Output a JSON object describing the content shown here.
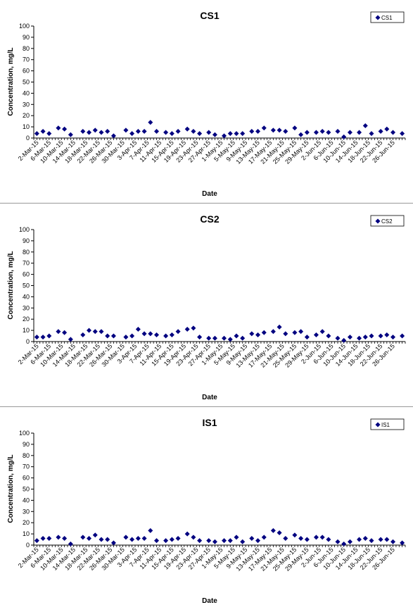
{
  "chart_data": [
    {
      "type": "scatter",
      "title": "CS1",
      "xlabel": "Date",
      "ylabel": "Concentration, mg/L",
      "ylim": [
        0,
        100
      ],
      "yticks": [
        0,
        10,
        20,
        30,
        40,
        50,
        60,
        70,
        80,
        90,
        100
      ],
      "xlim": [
        "2015-03-01",
        "2015-06-30"
      ],
      "xtick_labels": [
        "2-Mar-15",
        "6-Mar-15",
        "10-Mar-15",
        "14-Mar-15",
        "18-Mar-15",
        "22-Mar-15",
        "26-Mar-15",
        "30-Mar-15",
        "3-Apr-15",
        "7-Apr-15",
        "11-Apr-15",
        "15-Apr-15",
        "19-Apr-15",
        "23-Apr-15",
        "27-Apr-15",
        "1-May-15",
        "5-May-15",
        "9-May-15",
        "13-May-15",
        "17-May-15",
        "21-May-15",
        "25-May-15",
        "29-May-15",
        "2-Jun-15",
        "6-Jun-15",
        "10-Jun-15",
        "14-Jun-15",
        "18-Jun-15",
        "22-Jun-15",
        "26-Jun-15"
      ],
      "legend": "top-right",
      "grid": false,
      "series": [
        {
          "name": "CS1",
          "color": "#000080",
          "points": [
            [
              "2015-03-02",
              4
            ],
            [
              "2015-03-04",
              6
            ],
            [
              "2015-03-06",
              4
            ],
            [
              "2015-03-09",
              9
            ],
            [
              "2015-03-11",
              8
            ],
            [
              "2015-03-13",
              3
            ],
            [
              "2015-03-17",
              6
            ],
            [
              "2015-03-19",
              5
            ],
            [
              "2015-03-21",
              7
            ],
            [
              "2015-03-23",
              5
            ],
            [
              "2015-03-25",
              6
            ],
            [
              "2015-03-27",
              2
            ],
            [
              "2015-03-31",
              7
            ],
            [
              "2015-04-02",
              4
            ],
            [
              "2015-04-04",
              6
            ],
            [
              "2015-04-06",
              6
            ],
            [
              "2015-04-08",
              14
            ],
            [
              "2015-04-10",
              6
            ],
            [
              "2015-04-13",
              5
            ],
            [
              "2015-04-15",
              4
            ],
            [
              "2015-04-17",
              6
            ],
            [
              "2015-04-20",
              8
            ],
            [
              "2015-04-22",
              6
            ],
            [
              "2015-04-24",
              4
            ],
            [
              "2015-04-27",
              5
            ],
            [
              "2015-04-29",
              3
            ],
            [
              "2015-05-02",
              2
            ],
            [
              "2015-05-04",
              4
            ],
            [
              "2015-05-06",
              4
            ],
            [
              "2015-05-08",
              4
            ],
            [
              "2015-05-11",
              6
            ],
            [
              "2015-05-13",
              6
            ],
            [
              "2015-05-15",
              9
            ],
            [
              "2015-05-18",
              7
            ],
            [
              "2015-05-20",
              7
            ],
            [
              "2015-05-22",
              6
            ],
            [
              "2015-05-25",
              9
            ],
            [
              "2015-05-27",
              3
            ],
            [
              "2015-05-29",
              5
            ],
            [
              "2015-06-01",
              5
            ],
            [
              "2015-06-03",
              6
            ],
            [
              "2015-06-05",
              5
            ],
            [
              "2015-06-08",
              6
            ],
            [
              "2015-06-10",
              1
            ],
            [
              "2015-06-12",
              5
            ],
            [
              "2015-06-15",
              5
            ],
            [
              "2015-06-17",
              11
            ],
            [
              "2015-06-19",
              4
            ],
            [
              "2015-06-22",
              6
            ],
            [
              "2015-06-24",
              8
            ],
            [
              "2015-06-26",
              5
            ],
            [
              "2015-06-29",
              4
            ]
          ]
        }
      ]
    },
    {
      "type": "scatter",
      "title": "CS2",
      "xlabel": "Date",
      "ylabel": "Concentration, mg/L",
      "ylim": [
        0,
        100
      ],
      "yticks": [
        0,
        10,
        20,
        30,
        40,
        50,
        60,
        70,
        80,
        90,
        100
      ],
      "xlim": [
        "2015-03-01",
        "2015-06-30"
      ],
      "xtick_labels": [
        "2-Mar-15",
        "6-Mar-15",
        "10-Mar-15",
        "14-Mar-15",
        "18-Mar-15",
        "22-Mar-15",
        "26-Mar-15",
        "30-Mar-15",
        "3-Apr-15",
        "7-Apr-15",
        "11-Apr-15",
        "15-Apr-15",
        "19-Apr-15",
        "23-Apr-15",
        "27-Apr-15",
        "1-May-15",
        "5-May-15",
        "9-May-15",
        "13-May-15",
        "17-May-15",
        "21-May-15",
        "25-May-15",
        "29-May-15",
        "2-Jun-15",
        "6-Jun-15",
        "10-Jun-15",
        "14-Jun-15",
        "18-Jun-15",
        "22-Jun-15",
        "26-Jun-15"
      ],
      "legend": "top-right",
      "grid": false,
      "series": [
        {
          "name": "CS2",
          "color": "#000080",
          "points": [
            [
              "2015-03-02",
              4
            ],
            [
              "2015-03-04",
              4
            ],
            [
              "2015-03-06",
              5
            ],
            [
              "2015-03-09",
              9
            ],
            [
              "2015-03-11",
              8
            ],
            [
              "2015-03-13",
              2
            ],
            [
              "2015-03-17",
              6
            ],
            [
              "2015-03-19",
              10
            ],
            [
              "2015-03-21",
              9
            ],
            [
              "2015-03-23",
              9
            ],
            [
              "2015-03-25",
              5
            ],
            [
              "2015-03-27",
              5
            ],
            [
              "2015-03-31",
              4
            ],
            [
              "2015-04-02",
              5
            ],
            [
              "2015-04-04",
              11
            ],
            [
              "2015-04-06",
              7
            ],
            [
              "2015-04-08",
              7
            ],
            [
              "2015-04-10",
              6
            ],
            [
              "2015-04-13",
              5
            ],
            [
              "2015-04-15",
              6
            ],
            [
              "2015-04-17",
              9
            ],
            [
              "2015-04-20",
              11
            ],
            [
              "2015-04-22",
              12
            ],
            [
              "2015-04-24",
              4
            ],
            [
              "2015-04-27",
              3
            ],
            [
              "2015-04-29",
              3
            ],
            [
              "2015-05-02",
              3
            ],
            [
              "2015-05-04",
              2
            ],
            [
              "2015-05-06",
              5
            ],
            [
              "2015-05-08",
              3
            ],
            [
              "2015-05-11",
              7
            ],
            [
              "2015-05-13",
              6
            ],
            [
              "2015-05-15",
              8
            ],
            [
              "2015-05-18",
              9
            ],
            [
              "2015-05-20",
              13
            ],
            [
              "2015-05-22",
              7
            ],
            [
              "2015-05-25",
              8
            ],
            [
              "2015-05-27",
              9
            ],
            [
              "2015-05-29",
              4
            ],
            [
              "2015-06-01",
              6
            ],
            [
              "2015-06-03",
              9
            ],
            [
              "2015-06-05",
              5
            ],
            [
              "2015-06-08",
              3
            ],
            [
              "2015-06-10",
              1
            ],
            [
              "2015-06-12",
              4
            ],
            [
              "2015-06-15",
              3
            ],
            [
              "2015-06-17",
              4
            ],
            [
              "2015-06-19",
              5
            ],
            [
              "2015-06-22",
              5
            ],
            [
              "2015-06-24",
              6
            ],
            [
              "2015-06-26",
              4
            ],
            [
              "2015-06-29",
              5
            ]
          ]
        }
      ]
    },
    {
      "type": "scatter",
      "title": "IS1",
      "xlabel": "Date",
      "ylabel": "Concentration, mg/L",
      "ylim": [
        0,
        100
      ],
      "yticks": [
        0,
        10,
        20,
        30,
        40,
        50,
        60,
        70,
        80,
        90,
        100
      ],
      "xlim": [
        "2015-03-01",
        "2015-06-30"
      ],
      "xtick_labels": [
        "2-Mar-15",
        "6-Mar-15",
        "10-Mar-15",
        "14-Mar-15",
        "18-Mar-15",
        "22-Mar-15",
        "26-Mar-15",
        "30-Mar-15",
        "3-Apr-15",
        "7-Apr-15",
        "11-Apr-15",
        "15-Apr-15",
        "19-Apr-15",
        "23-Apr-15",
        "27-Apr-15",
        "1-May-15",
        "5-May-15",
        "9-May-15",
        "13-May-15",
        "17-May-15",
        "21-May-15",
        "25-May-15",
        "29-May-15",
        "2-Jun-15",
        "6-Jun-15",
        "10-Jun-15",
        "14-Jun-15",
        "18-Jun-15",
        "22-Jun-15",
        "26-Jun-15"
      ],
      "legend": "top-right",
      "grid": false,
      "series": [
        {
          "name": "IS1",
          "color": "#000080",
          "points": [
            [
              "2015-03-02",
              4
            ],
            [
              "2015-03-04",
              6
            ],
            [
              "2015-03-06",
              6
            ],
            [
              "2015-03-09",
              7
            ],
            [
              "2015-03-11",
              6
            ],
            [
              "2015-03-13",
              1
            ],
            [
              "2015-03-17",
              7
            ],
            [
              "2015-03-19",
              6
            ],
            [
              "2015-03-21",
              9
            ],
            [
              "2015-03-23",
              5
            ],
            [
              "2015-03-25",
              5
            ],
            [
              "2015-03-27",
              2
            ],
            [
              "2015-03-31",
              7
            ],
            [
              "2015-04-02",
              5
            ],
            [
              "2015-04-04",
              6
            ],
            [
              "2015-04-06",
              6
            ],
            [
              "2015-04-08",
              13
            ],
            [
              "2015-04-10",
              4
            ],
            [
              "2015-04-13",
              4
            ],
            [
              "2015-04-15",
              5
            ],
            [
              "2015-04-17",
              6
            ],
            [
              "2015-04-20",
              10
            ],
            [
              "2015-04-22",
              7
            ],
            [
              "2015-04-24",
              4
            ],
            [
              "2015-04-27",
              4
            ],
            [
              "2015-04-29",
              3
            ],
            [
              "2015-05-02",
              4
            ],
            [
              "2015-05-04",
              4
            ],
            [
              "2015-05-06",
              7
            ],
            [
              "2015-05-08",
              3
            ],
            [
              "2015-05-11",
              6
            ],
            [
              "2015-05-13",
              4
            ],
            [
              "2015-05-15",
              7
            ],
            [
              "2015-05-18",
              13
            ],
            [
              "2015-05-20",
              11
            ],
            [
              "2015-05-22",
              6
            ],
            [
              "2015-05-25",
              9
            ],
            [
              "2015-05-27",
              6
            ],
            [
              "2015-05-29",
              5
            ],
            [
              "2015-06-01",
              7
            ],
            [
              "2015-06-03",
              7
            ],
            [
              "2015-06-05",
              5
            ],
            [
              "2015-06-08",
              3
            ],
            [
              "2015-06-10",
              1
            ],
            [
              "2015-06-12",
              3
            ],
            [
              "2015-06-15",
              5
            ],
            [
              "2015-06-17",
              6
            ],
            [
              "2015-06-19",
              4
            ],
            [
              "2015-06-22",
              5
            ],
            [
              "2015-06-24",
              5
            ],
            [
              "2015-06-26",
              3
            ],
            [
              "2015-06-29",
              2
            ]
          ]
        }
      ]
    }
  ]
}
